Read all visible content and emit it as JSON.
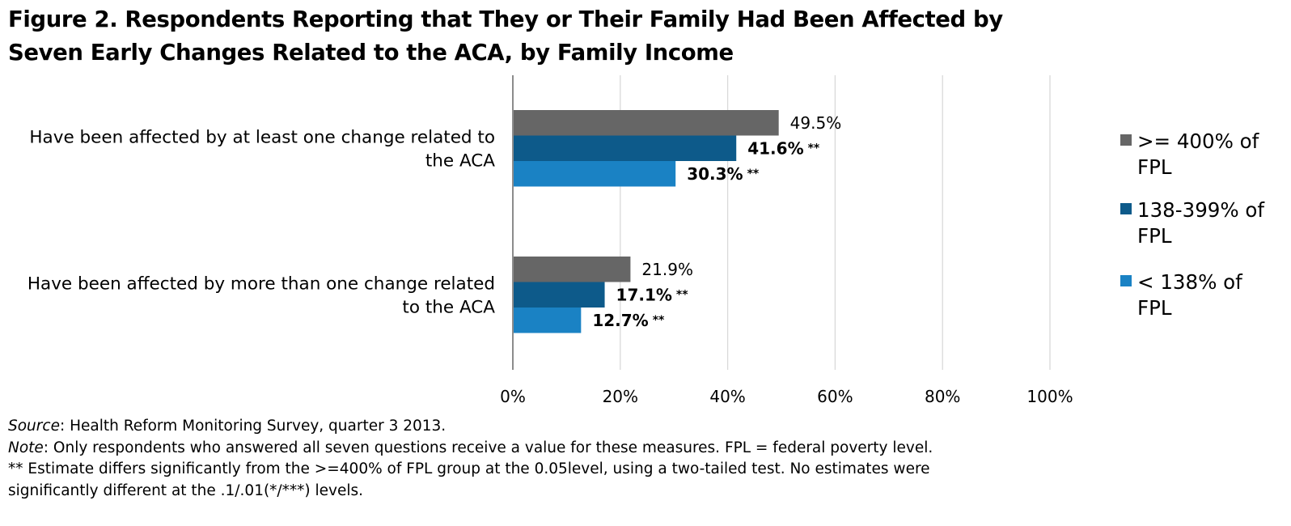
{
  "title_lines": [
    "Figure 2. Respondents Reporting that They or Their Family Had Been Affected by",
    "Seven Early Changes Related to the ACA, by Family Income"
  ],
  "chart_data": {
    "type": "bar",
    "orientation": "horizontal",
    "categories": [
      [
        "Have been affected by at least one change related to",
        "the ACA"
      ],
      [
        "Have been affected by more than one change related",
        "to the ACA"
      ]
    ],
    "series": [
      {
        "name": ">= 400% of FPL",
        "name_lines": [
          ">= 400% of",
          "FPL"
        ],
        "color": "#666666",
        "values": [
          49.5,
          21.9
        ],
        "labels": [
          "49.5%",
          "21.9%"
        ],
        "marks": [
          "",
          ""
        ],
        "bold": false
      },
      {
        "name": "138-399% of FPL",
        "name_lines": [
          "138-399% of",
          "FPL"
        ],
        "color": "#0d5a8a",
        "values": [
          41.6,
          17.1
        ],
        "labels": [
          "41.6%",
          "17.1%"
        ],
        "marks": [
          "**",
          "**"
        ],
        "bold": true
      },
      {
        "name": "< 138% of FPL",
        "name_lines": [
          "< 138% of",
          "FPL"
        ],
        "color": "#1a82c4",
        "values": [
          30.3,
          12.7
        ],
        "labels": [
          "30.3%",
          "12.7%"
        ],
        "marks": [
          "**",
          "**"
        ],
        "bold": true
      }
    ],
    "xlim": [
      0,
      100
    ],
    "x_ticks": [
      0,
      20,
      40,
      60,
      80,
      100
    ],
    "x_tick_labels": [
      "0%",
      "20%",
      "40%",
      "60%",
      "80%",
      "100%"
    ],
    "grid": true,
    "legend_position": "right"
  },
  "notes": {
    "source_label": "Source",
    "source_text": ": Health Reform Monitoring Survey, quarter 3 2013.",
    "note_label": "Note",
    "note_text": ": Only respondents who answered all seven questions receive a value for these measures. FPL = federal poverty level.",
    "significance_line1": "** Estimate differs significantly from the >=400% of FPL group at the 0.05level, using a two-tailed test. No estimates were",
    "significance_line2": "significantly different at the .1/.01(*/***) levels."
  }
}
